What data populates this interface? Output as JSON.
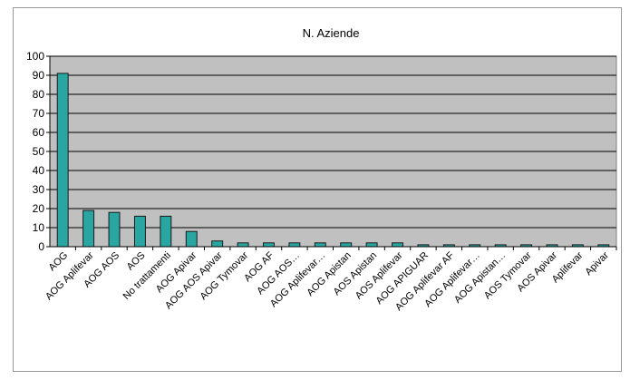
{
  "chart_data": {
    "type": "bar",
    "title": "N. Aziende",
    "xlabel": "",
    "ylabel": "",
    "ylim": [
      0,
      100
    ],
    "yticks": [
      0,
      10,
      20,
      30,
      40,
      50,
      60,
      70,
      80,
      90,
      100
    ],
    "grid": true,
    "legend": "none",
    "colors": {
      "bar": "#2aa6a2",
      "bar_edge": "#1a1a1a",
      "plot_background": "#c0c0c0",
      "gridline": "#000000"
    },
    "categories": [
      "AOG",
      "AOG Aplifevar",
      "AOG AOS",
      "AOS",
      "No trattamenti",
      "AOG  Apivar",
      "AOG AOS  Apivar",
      "AOG  Tymovar",
      "AOG AF",
      "AOG AOS…",
      "AOG Aplifevar…",
      "AOG Apistan",
      "AOS Apistan",
      "AOS Aplifevar",
      "AOG APIGUAR",
      "AOG Aplifevar AF",
      "AOG Aplifevar…",
      "AOG Apistan…",
      "AOS  Tymovar",
      "AOS Apivar",
      "Aplifevar",
      "Apivar"
    ],
    "values": [
      91,
      19,
      18,
      16,
      16,
      8,
      3,
      2,
      2,
      2,
      2,
      2,
      2,
      2,
      1,
      1,
      1,
      1,
      1,
      1,
      1,
      1
    ]
  }
}
